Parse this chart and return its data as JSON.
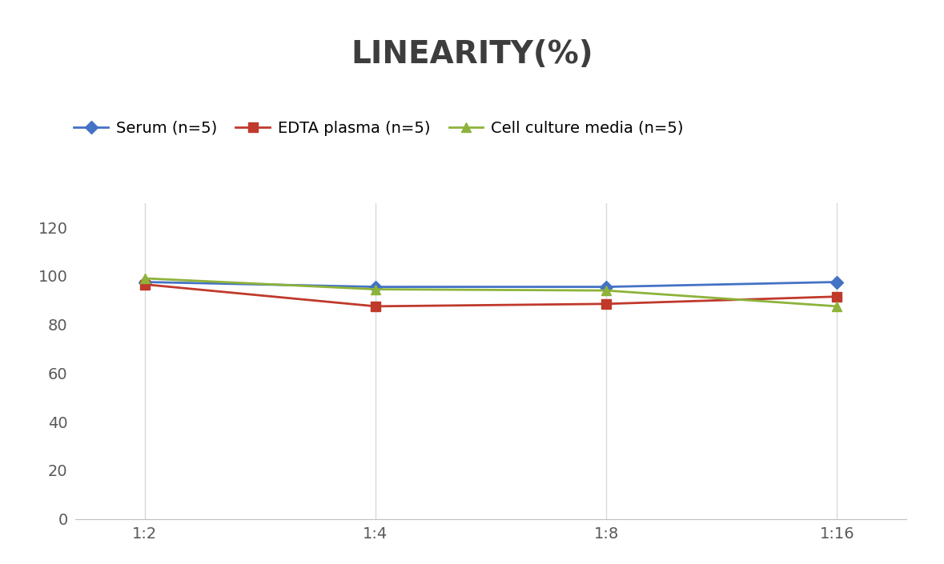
{
  "title": "LINEARITY(%)",
  "title_fontsize": 28,
  "title_fontweight": "bold",
  "x_labels": [
    "1:2",
    "1:4",
    "1:8",
    "1:16"
  ],
  "series": [
    {
      "label": "Serum (n=5)",
      "values": [
        97.5,
        95.5,
        95.5,
        97.5
      ],
      "color": "#4472C4",
      "marker": "D",
      "markersize": 8,
      "linewidth": 2
    },
    {
      "label": "EDTA plasma (n=5)",
      "values": [
        96.5,
        87.5,
        88.5,
        91.5
      ],
      "color": "#C0392B",
      "marker": "s",
      "markersize": 8,
      "linewidth": 2
    },
    {
      "label": "Cell culture media (n=5)",
      "values": [
        99.0,
        94.5,
        94.0,
        87.5
      ],
      "color": "#8DB33A",
      "marker": "^",
      "markersize": 8,
      "linewidth": 2
    }
  ],
  "ylim": [
    0,
    130
  ],
  "yticks": [
    0,
    20,
    40,
    60,
    80,
    100,
    120
  ],
  "grid_color": "#D9D9D9",
  "background_color": "#FFFFFF",
  "legend_fontsize": 14,
  "axis_fontsize": 14,
  "fig_width": 11.79,
  "fig_height": 7.05,
  "dpi": 100
}
